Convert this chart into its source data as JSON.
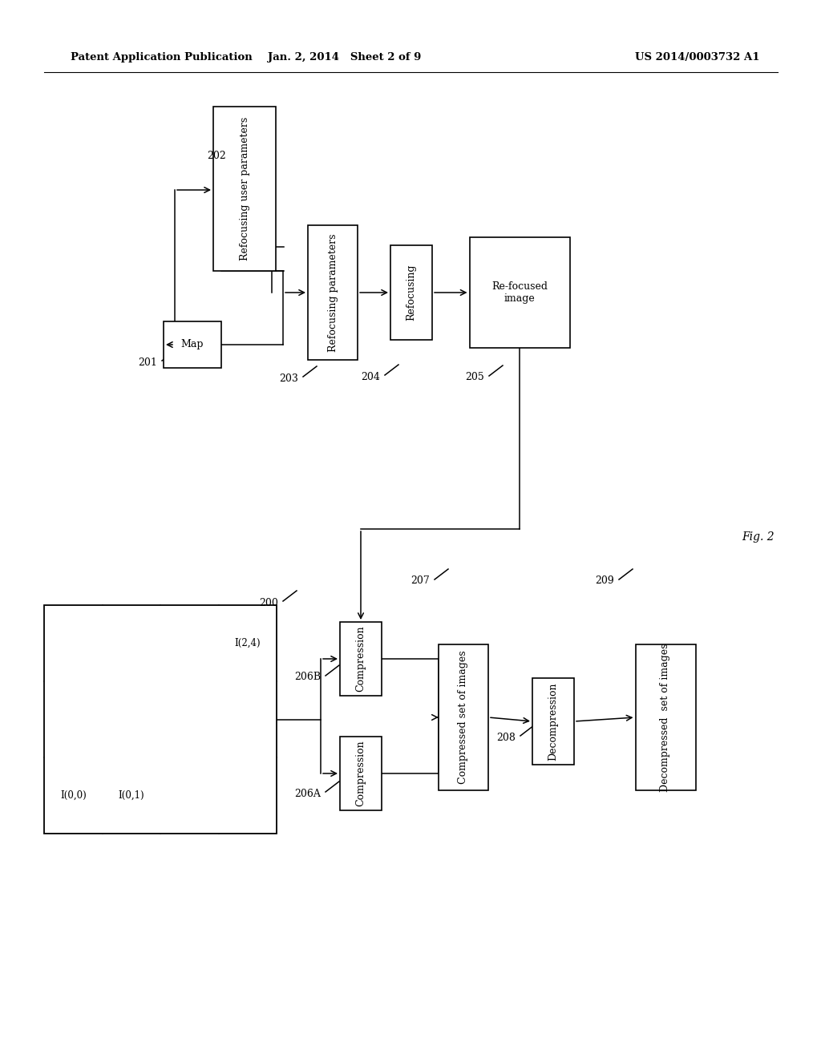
{
  "header_left": "Patent Application Publication",
  "header_mid": "Jan. 2, 2014   Sheet 2 of 9",
  "header_right": "US 2014/0003732 A1",
  "fig_label": "Fig. 2"
}
